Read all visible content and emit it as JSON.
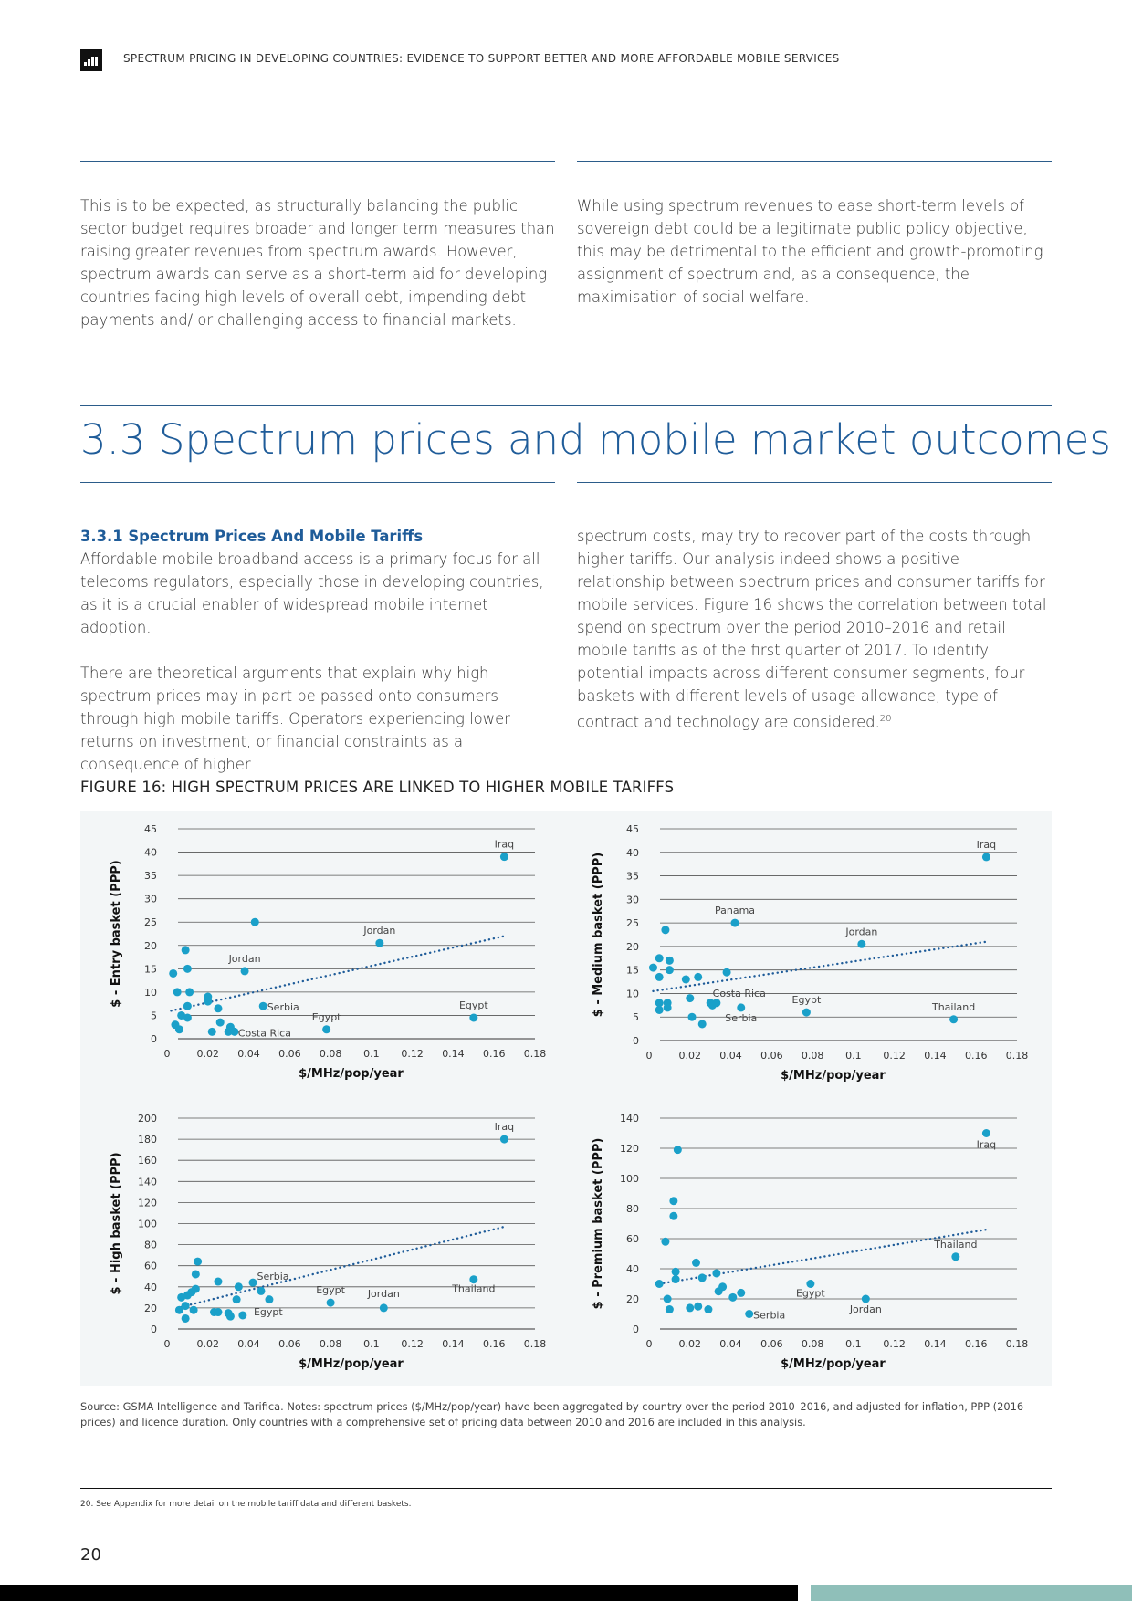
{
  "header": {
    "title": "SPECTRUM PRICING IN DEVELOPING COUNTRIES: EVIDENCE TO SUPPORT BETTER AND MORE AFFORDABLE MOBILE SERVICES"
  },
  "intro": {
    "left": "This is to be expected, as structurally balancing the public sector budget requires broader and longer term measures than raising greater revenues from spectrum awards. However, spectrum awards can serve as a short-term aid for developing countries facing high levels of overall debt, impending debt payments and/ or challenging access to financial markets.",
    "right": "While using spectrum revenues to ease short-term levels of sovereign debt could be a legitimate public policy objective, this may be detrimental to the efficient and growth-promoting assignment of spectrum and, as a consequence, the maximisation of social welfare."
  },
  "section": {
    "title": "3.3 Spectrum prices and mobile market outcomes"
  },
  "subsection": {
    "title": "3.3.1 Spectrum Prices And Mobile Tariffs",
    "para1": "Affordable mobile broadband access is a primary focus for all telecoms regulators, especially those in developing countries, as it is a crucial enabler of widespread mobile internet adoption.",
    "para2": "There are theoretical arguments that explain why high spectrum prices may in part be passed onto consumers through high mobile tariffs. Operators experiencing lower returns on investment, or financial constraints as a consequence of higher",
    "right": "spectrum costs, may try to recover part of the costs through higher tariffs. Our analysis indeed shows a positive relationship between spectrum prices and consumer tariffs for mobile services. Figure 16 shows the correlation between total spend on spectrum over the period 2010–2016 and retail mobile tariffs as of the first quarter of 2017. To identify potential impacts across different consumer segments, four baskets with different levels of usage allowance, type of contract and technology are considered.",
    "footnote_ref": "20"
  },
  "figure": {
    "title": "FIGURE 16: HIGH SPECTRUM PRICES ARE LINKED TO HIGHER MOBILE TARIFFS",
    "source": "Source: GSMA Intelligence and Tarifica. Notes: spectrum prices ($/MHz/pop/year) have been aggregated by country over the period 2010–2016, and adjusted for inflation, PPP (2016 prices) and licence duration. Only countries with a comprehensive set of pricing data between 2010 and 2016 are included in this analysis."
  },
  "colors": {
    "point": "#1aa0c9",
    "trend": "#1f5c99",
    "grid": "#555555",
    "accent": "#1f5c99"
  },
  "chart_data": [
    {
      "type": "scatter",
      "ylabel": "$ - Entry basket (PPP)",
      "xlabel": "$/MHz/pop/year",
      "xlim": [
        0,
        0.18
      ],
      "ylim": [
        0,
        45
      ],
      "xticks": [
        "0",
        "0.02",
        "0.04",
        "0.06",
        "0.08",
        "0.1",
        "0.12",
        "0.14",
        "0.16",
        "0.18"
      ],
      "yticks": [
        "0",
        "5",
        "10",
        "15",
        "20",
        "25",
        "30",
        "35",
        "40",
        "45"
      ],
      "trend": [
        [
          0.002,
          6
        ],
        [
          0.165,
          22
        ]
      ],
      "points": [
        [
          0.003,
          14
        ],
        [
          0.005,
          10
        ],
        [
          0.007,
          5
        ],
        [
          0.009,
          19
        ],
        [
          0.01,
          15
        ],
        [
          0.011,
          10
        ],
        [
          0.01,
          7
        ],
        [
          0.01,
          4.5
        ],
        [
          0.004,
          3
        ],
        [
          0.006,
          2
        ],
        [
          0.02,
          8
        ],
        [
          0.02,
          9
        ],
        [
          0.022,
          1.5
        ],
        [
          0.025,
          6.5
        ],
        [
          0.026,
          3.5
        ],
        [
          0.03,
          1.5
        ],
        [
          0.031,
          2.5
        ],
        [
          0.033,
          1.5
        ],
        [
          0.043,
          25
        ],
        [
          0.038,
          14.5
        ],
        [
          0.047,
          7
        ],
        [
          0.078,
          2
        ],
        [
          0.104,
          20.5
        ],
        [
          0.15,
          4.5
        ],
        [
          0.165,
          39
        ]
      ],
      "labels": [
        {
          "text": "Iraq",
          "x": 0.165,
          "y": 39,
          "dx": 0,
          "dy": -10
        },
        {
          "text": "Jordan",
          "x": 0.104,
          "y": 20.5,
          "dx": 0,
          "dy": -10
        },
        {
          "text": "Jordan",
          "x": 0.038,
          "y": 14.5,
          "dx": 0,
          "dy": -10
        },
        {
          "text": "Serbia",
          "x": 0.047,
          "y": 7,
          "dx": 22,
          "dy": 5
        },
        {
          "text": "Costa Rica",
          "x": 0.033,
          "y": 1.5,
          "dx": 33,
          "dy": 5
        },
        {
          "text": "Egypt",
          "x": 0.078,
          "y": 2,
          "dx": 0,
          "dy": -10
        },
        {
          "text": "Egypt",
          "x": 0.15,
          "y": 4.5,
          "dx": 0,
          "dy": -10
        }
      ]
    },
    {
      "type": "scatter",
      "ylabel": "$ - Medium basket (PPP)",
      "xlabel": "$/MHz/pop/year",
      "xlim": [
        0,
        0.18
      ],
      "ylim": [
        0,
        45
      ],
      "xticks": [
        "0",
        "0.02",
        "0.04",
        "0.06",
        "0.08",
        "0.1",
        "0.12",
        "0.14",
        "0.16",
        "0.18"
      ],
      "yticks": [
        "0",
        "5",
        "10",
        "15",
        "20",
        "25",
        "30",
        "35",
        "40",
        "45"
      ],
      "trend": [
        [
          0.002,
          10.5
        ],
        [
          0.165,
          21
        ]
      ],
      "points": [
        [
          0.002,
          15.5
        ],
        [
          0.005,
          17.5
        ],
        [
          0.005,
          13.5
        ],
        [
          0.005,
          8
        ],
        [
          0.005,
          6.5
        ],
        [
          0.008,
          23.5
        ],
        [
          0.009,
          8
        ],
        [
          0.009,
          7
        ],
        [
          0.01,
          15
        ],
        [
          0.01,
          17
        ],
        [
          0.018,
          13
        ],
        [
          0.02,
          9
        ],
        [
          0.021,
          5
        ],
        [
          0.024,
          13.5
        ],
        [
          0.026,
          3.5
        ],
        [
          0.03,
          8
        ],
        [
          0.031,
          7.5
        ],
        [
          0.033,
          8
        ],
        [
          0.038,
          14.5
        ],
        [
          0.042,
          25
        ],
        [
          0.045,
          7
        ],
        [
          0.077,
          6
        ],
        [
          0.104,
          20.5
        ],
        [
          0.149,
          4.5
        ],
        [
          0.165,
          39
        ]
      ],
      "labels": [
        {
          "text": "Iraq",
          "x": 0.165,
          "y": 39,
          "dx": 0,
          "dy": -10
        },
        {
          "text": "Panama",
          "x": 0.042,
          "y": 25,
          "dx": 0,
          "dy": -10
        },
        {
          "text": "Jordan",
          "x": 0.104,
          "y": 20.5,
          "dx": 0,
          "dy": -10
        },
        {
          "text": "Costa Rica",
          "x": 0.045,
          "y": 7,
          "dx": -2,
          "dy": -12
        },
        {
          "text": "Serbia",
          "x": 0.045,
          "y": 7,
          "dx": 0,
          "dy": 15
        },
        {
          "text": "Egypt",
          "x": 0.077,
          "y": 6,
          "dx": 0,
          "dy": -10
        },
        {
          "text": "Thailand",
          "x": 0.149,
          "y": 4.5,
          "dx": 0,
          "dy": -10
        }
      ]
    },
    {
      "type": "scatter",
      "ylabel": "$ - High basket (PPP)",
      "xlabel": "$/MHz/pop/year",
      "xlim": [
        0,
        0.18
      ],
      "ylim": [
        0,
        200
      ],
      "xticks": [
        "0",
        "0.02",
        "0.04",
        "0.06",
        "0.08",
        "0.1",
        "0.12",
        "0.14",
        "0.16",
        "0.18"
      ],
      "yticks": [
        "0",
        "20",
        "40",
        "60",
        "80",
        "100",
        "120",
        "140",
        "160",
        "180",
        "200"
      ],
      "trend": [
        [
          0.005,
          20
        ],
        [
          0.165,
          97
        ]
      ],
      "points": [
        [
          0.007,
          30
        ],
        [
          0.009,
          10
        ],
        [
          0.009,
          22
        ],
        [
          0.01,
          32
        ],
        [
          0.012,
          35
        ],
        [
          0.013,
          18
        ],
        [
          0.014,
          38
        ],
        [
          0.014,
          52
        ],
        [
          0.015,
          64
        ],
        [
          0.006,
          18
        ],
        [
          0.023,
          16
        ],
        [
          0.025,
          45
        ],
        [
          0.025,
          16
        ],
        [
          0.03,
          15
        ],
        [
          0.031,
          12
        ],
        [
          0.034,
          28
        ],
        [
          0.035,
          40
        ],
        [
          0.037,
          13
        ],
        [
          0.042,
          44
        ],
        [
          0.046,
          36
        ],
        [
          0.05,
          28
        ],
        [
          0.08,
          25
        ],
        [
          0.106,
          20
        ],
        [
          0.15,
          47
        ],
        [
          0.165,
          180
        ]
      ],
      "labels": [
        {
          "text": "Iraq",
          "x": 0.165,
          "y": 180,
          "dx": 0,
          "dy": -10
        },
        {
          "text": "Serbia",
          "x": 0.042,
          "y": 44,
          "dx": 22,
          "dy": -3
        },
        {
          "text": "Egypt",
          "x": 0.037,
          "y": 13,
          "dx": 28,
          "dy": 0
        },
        {
          "text": "Egypt",
          "x": 0.08,
          "y": 25,
          "dx": 0,
          "dy": -10
        },
        {
          "text": "Jordan",
          "x": 0.106,
          "y": 20,
          "dx": 0,
          "dy": -12
        },
        {
          "text": "Thailand",
          "x": 0.15,
          "y": 47,
          "dx": 0,
          "dy": 14
        }
      ]
    },
    {
      "type": "scatter",
      "ylabel": "$ - Premium basket (PPP)",
      "xlabel": "$/MHz/pop/year",
      "xlim": [
        0,
        0.18
      ],
      "ylim": [
        0,
        140
      ],
      "xticks": [
        "0",
        "0.02",
        "0.04",
        "0.06",
        "0.08",
        "0.1",
        "0.12",
        "0.14",
        "0.16",
        "0.18"
      ],
      "yticks": [
        "0",
        "20",
        "40",
        "60",
        "80",
        "100",
        "120",
        "140"
      ],
      "trend": [
        [
          0.005,
          30
        ],
        [
          0.165,
          66
        ]
      ],
      "points": [
        [
          0.005,
          30
        ],
        [
          0.008,
          58
        ],
        [
          0.009,
          20
        ],
        [
          0.01,
          13
        ],
        [
          0.012,
          75
        ],
        [
          0.012,
          85
        ],
        [
          0.013,
          38
        ],
        [
          0.013,
          33
        ],
        [
          0.014,
          119
        ],
        [
          0.02,
          14
        ],
        [
          0.023,
          44
        ],
        [
          0.024,
          15
        ],
        [
          0.026,
          34
        ],
        [
          0.029,
          13
        ],
        [
          0.033,
          37
        ],
        [
          0.034,
          25
        ],
        [
          0.036,
          28
        ],
        [
          0.041,
          21
        ],
        [
          0.045,
          24
        ],
        [
          0.049,
          10
        ],
        [
          0.079,
          30
        ],
        [
          0.106,
          20
        ],
        [
          0.15,
          48
        ],
        [
          0.165,
          130
        ]
      ],
      "labels": [
        {
          "text": "Iraq",
          "x": 0.165,
          "y": 130,
          "dx": 0,
          "dy": 16
        },
        {
          "text": "Thailand",
          "x": 0.15,
          "y": 48,
          "dx": 0,
          "dy": -10
        },
        {
          "text": "Serbia",
          "x": 0.049,
          "y": 10,
          "dx": 22,
          "dy": 5
        },
        {
          "text": "Egypt",
          "x": 0.079,
          "y": 30,
          "dx": 0,
          "dy": 14
        },
        {
          "text": "Jordan",
          "x": 0.106,
          "y": 20,
          "dx": 0,
          "dy": 15
        }
      ]
    }
  ],
  "footnote": "20.    See Appendix for more detail on the mobile tariff data and different baskets.",
  "page_number": "20"
}
